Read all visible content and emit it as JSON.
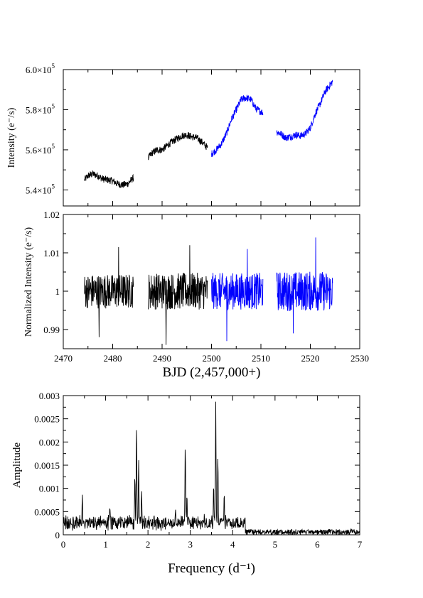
{
  "chart_data": [
    {
      "type": "line",
      "ylabel": "Intensity (e⁻/s)",
      "xlim": [
        2470,
        2530
      ],
      "ylim": [
        532000,
        600000
      ],
      "x_ticks": [
        2470,
        2480,
        2490,
        2500,
        2510,
        2520,
        2530
      ],
      "y_ticks": [
        {
          "value": 540000,
          "label": "5.4×10",
          "exp": "5"
        },
        {
          "value": 560000,
          "label": "5.6×10",
          "exp": "5"
        },
        {
          "value": 580000,
          "label": "5.8×10",
          "exp": "5"
        },
        {
          "value": 600000,
          "label": "6.0×10",
          "exp": "5"
        }
      ],
      "grid": false,
      "series": [
        {
          "color": "#000000",
          "x": [
            2474.3,
            2475.0,
            2476.0,
            2477.0,
            2478.0,
            2479.0,
            2480.0,
            2481.0,
            2482.0,
            2483.0,
            2484.2
          ],
          "y": [
            545000,
            547000,
            548000,
            547000,
            545500,
            545000,
            544500,
            543000,
            542500,
            543000,
            546000
          ],
          "noise": 1800
        },
        {
          "color": "#000000",
          "x": [
            2487.2,
            2488.0,
            2489.0,
            2490.0,
            2491.0,
            2492.0,
            2493.0,
            2494.0,
            2495.0,
            2496.0,
            2497.0,
            2498.0,
            2499.2
          ],
          "y": [
            556000,
            558500,
            560000,
            560000,
            562000,
            564000,
            565500,
            567000,
            567500,
            566500,
            566000,
            564000,
            561000
          ],
          "noise": 1800
        },
        {
          "color": "#0000ff",
          "x": [
            2500.0,
            2501.0,
            2502.0,
            2503.0,
            2504.0,
            2505.0,
            2506.0,
            2507.0,
            2508.0,
            2509.0,
            2510.4
          ],
          "y": [
            558000,
            560000,
            563000,
            568000,
            575000,
            580000,
            585000,
            586000,
            585000,
            580500,
            578500
          ],
          "noise": 1800
        },
        {
          "color": "#0000ff",
          "x": [
            2513.2,
            2514.0,
            2515.0,
            2516.0,
            2517.0,
            2518.0,
            2519.0,
            2520.0,
            2521.0,
            2522.0,
            2523.0,
            2524.5
          ],
          "y": [
            569000,
            568000,
            566000,
            566500,
            567500,
            567000,
            568000,
            571000,
            578000,
            583000,
            589000,
            594000
          ],
          "noise": 1800
        }
      ]
    },
    {
      "type": "line",
      "ylabel": "Normalized Intensity (e⁻/s)",
      "xlabel": "BJD (2,457,000+)",
      "xlim": [
        2470,
        2530
      ],
      "ylim": [
        0.985,
        1.02
      ],
      "x_ticks": [
        2470,
        2480,
        2490,
        2500,
        2510,
        2520,
        2530
      ],
      "y_ticks": [
        {
          "value": 0.99,
          "label": "0.99"
        },
        {
          "value": 1.0,
          "label": "1"
        },
        {
          "value": 1.01,
          "label": "1.01"
        },
        {
          "value": 1.02,
          "label": "1.02"
        }
      ],
      "grid": false,
      "series": [
        {
          "color": "#000000",
          "x_range": [
            2474.3,
            2484.2
          ],
          "center": 1.0,
          "amplitude": 0.0045,
          "min": 0.988,
          "max": 1.0115
        },
        {
          "color": "#000000",
          "x_range": [
            2487.2,
            2499.2
          ],
          "center": 1.0,
          "amplitude": 0.0048,
          "min": 0.986,
          "max": 1.012
        },
        {
          "color": "#0000ff",
          "x_range": [
            2500.0,
            2510.4
          ],
          "center": 1.0,
          "amplitude": 0.0048,
          "min": 0.987,
          "max": 1.011
        },
        {
          "color": "#0000ff",
          "x_range": [
            2513.2,
            2524.5
          ],
          "center": 1.0,
          "amplitude": 0.0052,
          "min": 0.989,
          "max": 1.014
        }
      ]
    },
    {
      "type": "line",
      "ylabel": "Amplitude",
      "xlabel": "Frequency (d⁻¹)",
      "xlim": [
        0,
        7
      ],
      "ylim": [
        0,
        0.003
      ],
      "x_ticks": [
        0,
        1,
        2,
        3,
        4,
        5,
        6,
        7
      ],
      "y_ticks": [
        {
          "value": 0,
          "label": "0"
        },
        {
          "value": 0.0005,
          "label": "0.0005"
        },
        {
          "value": 0.001,
          "label": "0.001"
        },
        {
          "value": 0.0015,
          "label": "0.0015"
        },
        {
          "value": 0.002,
          "label": "0.002"
        },
        {
          "value": 0.0025,
          "label": "0.0025"
        },
        {
          "value": 0.003,
          "label": "0.003"
        }
      ],
      "grid": false,
      "series": [
        {
          "color": "#000000",
          "peaks": [
            {
              "x": 1.73,
              "y": 0.00262
            },
            {
              "x": 1.78,
              "y": 0.0017
            },
            {
              "x": 1.69,
              "y": 0.0014
            },
            {
              "x": 1.85,
              "y": 0.00105
            },
            {
              "x": 2.88,
              "y": 0.002
            },
            {
              "x": 2.92,
              "y": 0.0009
            },
            {
              "x": 3.6,
              "y": 0.0029
            },
            {
              "x": 3.65,
              "y": 0.0018
            },
            {
              "x": 3.55,
              "y": 0.0012
            },
            {
              "x": 3.8,
              "y": 0.00098
            },
            {
              "x": 0.45,
              "y": 0.0009
            },
            {
              "x": 1.1,
              "y": 0.00065
            },
            {
              "x": 2.65,
              "y": 0.0006
            }
          ]
        }
      ]
    }
  ]
}
